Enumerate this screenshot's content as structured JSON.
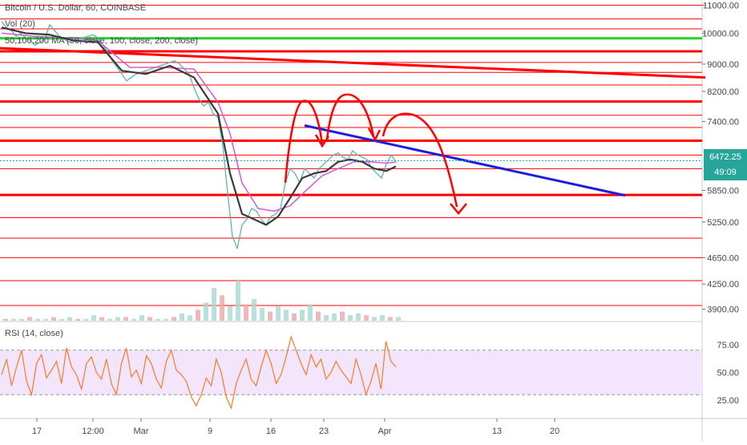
{
  "header": {
    "symbol_title": "Bitcoin / U.S. Dollar, 60, COINBASE",
    "volume_label": "Vol (20)",
    "ma_label": "50,100,200 MA (50, close, 100, close, 200, close)",
    "rsi_label": "RSI (14, close)"
  },
  "price_tags": {
    "last_price": "6472.25",
    "countdown": "49:09"
  },
  "colors": {
    "candle": "#5fb4b8",
    "ma_dark": "#3a3a3a",
    "ma_pink": "#d35bd6",
    "resistance": "#ff0000",
    "support_green": "#26d026",
    "trendline": "#1e1ee0",
    "rsi_line": "#f57c26",
    "rsi_band": "#f3e5fb",
    "last_price_tag": "#26a69a",
    "countdown_tag": "#26a69a"
  },
  "chart_data": [
    {
      "type": "line",
      "name": "price-pane",
      "title": "Bitcoin / U.S. Dollar, 60, COINBASE",
      "x_tick_labels": [
        "17",
        "12:00",
        "Mar",
        "9",
        "16",
        "23",
        "Apr",
        "13",
        "20"
      ],
      "y_tick_labels": [
        11000,
        10000,
        9000,
        8200,
        7400,
        6472.25,
        5850,
        5250,
        4650,
        4250,
        3900
      ],
      "ylim": [
        3750,
        11200
      ],
      "y_scale": "log",
      "last_price": 6472.25,
      "series": [
        {
          "kind": "price",
          "x": [
            0,
            6,
            12,
            18,
            24,
            30,
            36,
            42,
            48,
            54,
            60,
            66,
            72,
            78,
            84,
            90,
            96,
            102,
            108,
            114,
            120,
            126,
            132,
            138,
            144,
            150,
            156,
            162,
            168,
            174,
            180,
            186,
            192,
            198,
            204,
            210,
            216,
            222,
            228,
            234,
            240,
            246,
            252,
            258,
            264,
            270,
            276,
            282,
            288,
            294,
            300,
            306,
            312,
            318,
            324,
            330,
            336,
            342,
            348,
            354,
            360,
            366,
            372,
            378,
            384,
            390,
            396,
            402,
            408,
            414,
            420,
            426,
            432,
            438,
            444,
            450,
            456,
            462,
            468,
            474,
            480,
            486,
            492
          ],
          "y": [
            10400,
            10200,
            10100,
            9900,
            10000,
            9850,
            9750,
            9600,
            9700,
            9800,
            10300,
            10100,
            9900,
            9800,
            9700,
            9750,
            9800,
            9850,
            9900,
            9950,
            9850,
            9600,
            9400,
            9100,
            8900,
            8700,
            8500,
            8600,
            8700,
            8750,
            8800,
            8850,
            8900,
            8950,
            9000,
            9050,
            9100,
            9000,
            8850,
            8700,
            8300,
            8000,
            7800,
            7900,
            7600,
            7500,
            6800,
            5800,
            5000,
            4800,
            5200,
            5300,
            5500,
            5450,
            5300,
            5200,
            5350,
            5400,
            5500,
            6000,
            6300,
            6200,
            6000,
            6300,
            6200,
            6100,
            6300,
            6400,
            6500,
            6600,
            6650,
            6550,
            6500,
            6700,
            6600,
            6550,
            6500,
            6300,
            6200,
            6100,
            6400,
            6600,
            6450
          ]
        },
        {
          "kind": "ma50",
          "x": [
            0,
            30,
            60,
            90,
            120,
            150,
            180,
            210,
            240,
            270,
            285,
            300,
            315,
            330,
            345,
            360,
            375,
            390,
            405,
            420,
            435,
            450,
            465,
            480,
            492
          ],
          "y": [
            10200,
            10000,
            9950,
            9750,
            9700,
            8800,
            8700,
            8950,
            8600,
            7600,
            6200,
            5400,
            5300,
            5200,
            5350,
            5700,
            6100,
            6200,
            6250,
            6450,
            6500,
            6450,
            6300,
            6250,
            6350
          ]
        },
        {
          "kind": "ma100-200",
          "x": [
            0,
            40,
            80,
            120,
            160,
            200,
            240,
            270,
            285,
            300,
            320,
            340,
            360,
            380,
            400,
            420,
            440,
            460,
            480,
            492
          ],
          "y": [
            10000,
            9900,
            9850,
            9750,
            8900,
            8900,
            8850,
            7900,
            7100,
            6000,
            5500,
            5450,
            5550,
            5850,
            6150,
            6300,
            6450,
            6450,
            6420,
            6440
          ]
        }
      ],
      "horizontal_levels": [
        {
          "price": 11000,
          "style": "thin",
          "color": "red"
        },
        {
          "price": 10500,
          "style": "thin",
          "color": "red"
        },
        {
          "price": 10150,
          "style": "thin",
          "color": "red"
        },
        {
          "price": 9830,
          "style": "thick",
          "color": "green"
        },
        {
          "price": 9400,
          "style": "thick",
          "color": "red"
        },
        {
          "price": 9050,
          "style": "thin",
          "color": "red"
        },
        {
          "price": 8750,
          "style": "thin",
          "color": "red"
        },
        {
          "price": 8380,
          "style": "thin",
          "color": "red"
        },
        {
          "price": 7920,
          "style": "thick",
          "color": "red"
        },
        {
          "price": 7560,
          "style": "thin",
          "color": "red"
        },
        {
          "price": 7250,
          "style": "thin",
          "color": "red"
        },
        {
          "price": 6930,
          "style": "thick",
          "color": "red"
        },
        {
          "price": 6600,
          "style": "thin",
          "color": "red"
        },
        {
          "price": 6300,
          "style": "thin",
          "color": "red"
        },
        {
          "price": 5760,
          "style": "thick",
          "color": "red"
        },
        {
          "price": 5330,
          "style": "thin",
          "color": "red"
        },
        {
          "price": 4970,
          "style": "thin",
          "color": "red"
        },
        {
          "price": 4650,
          "style": "thin",
          "color": "red"
        },
        {
          "price": 4300,
          "style": "thin",
          "color": "red"
        },
        {
          "price": 3950,
          "style": "thin",
          "color": "red"
        }
      ],
      "sloped_lines": [
        {
          "color": "red",
          "from": {
            "x": 0,
            "price": 9500
          },
          "to": {
            "x": 880,
            "price": 8600
          }
        },
        {
          "color": "blue",
          "from": {
            "x": 380,
            "price": 7300
          },
          "to": {
            "x": 780,
            "price": 5750
          }
        }
      ]
    },
    {
      "type": "bar",
      "name": "volume-pane",
      "title": "Vol (20)",
      "bars": [
        1,
        1,
        1,
        2,
        1,
        1,
        2,
        1,
        2,
        1,
        1,
        3,
        2,
        1,
        2,
        2,
        1,
        3,
        2,
        1,
        1,
        2,
        4,
        3,
        6,
        10,
        18,
        14,
        8,
        22,
        9,
        12,
        7,
        5,
        8,
        6,
        4,
        6,
        9,
        5,
        3,
        4,
        5,
        3,
        4,
        3,
        2,
        3,
        2,
        2
      ]
    },
    {
      "type": "line",
      "name": "rsi-pane",
      "title": "RSI (14, close)",
      "y_tick_labels": [
        75,
        50,
        25
      ],
      "ylim": [
        10,
        95
      ],
      "band": [
        30,
        70
      ],
      "series": [
        {
          "kind": "rsi",
          "y": [
            48,
            62,
            38,
            55,
            70,
            42,
            30,
            58,
            66,
            45,
            52,
            60,
            40,
            72,
            55,
            48,
            35,
            58,
            64,
            50,
            44,
            62,
            40,
            30,
            58,
            72,
            46,
            52,
            40,
            65,
            58,
            44,
            36,
            60,
            70,
            52,
            48,
            42,
            28,
            20,
            30,
            45,
            38,
            62,
            50,
            28,
            18,
            40,
            52,
            62,
            44,
            38,
            55,
            70,
            58,
            40,
            48,
            64,
            82,
            70,
            58,
            48,
            66,
            55,
            62,
            44,
            50,
            60,
            52,
            46,
            40,
            62,
            48,
            30,
            42,
            58,
            35,
            78,
            60,
            55
          ]
        }
      ]
    }
  ]
}
